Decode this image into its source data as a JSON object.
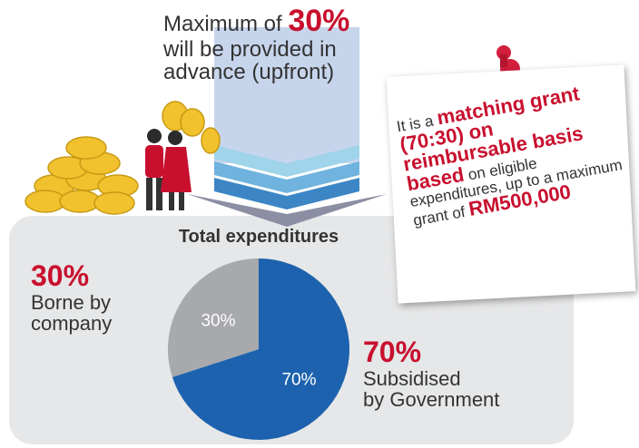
{
  "chart_data": {
    "type": "pie",
    "title": "Total expenditures",
    "values": [
      30,
      70
    ],
    "value_labels": [
      "30%",
      "70%"
    ],
    "colors": [
      "#a7a9ac",
      "#1d62ae"
    ],
    "callouts": [
      {
        "percent": "30%",
        "lines": [
          "Borne by",
          "company"
        ]
      },
      {
        "percent": "70%",
        "lines": [
          "Subsidised",
          "by Government"
        ]
      }
    ]
  },
  "upfront": {
    "lead": "Maximum of",
    "highlight": "30%",
    "lines": [
      "will be provided in",
      "advance (upfront)"
    ]
  },
  "note": {
    "segments": [
      {
        "text": "It is a",
        "strong": false
      },
      {
        "text": "matching grant (70:30) on reimbursable basis based",
        "strong": true
      },
      {
        "text": "on eligible expenditures, up to a maximum grant of",
        "strong": false
      },
      {
        "text": "RM500,000",
        "strong": true
      }
    ]
  }
}
